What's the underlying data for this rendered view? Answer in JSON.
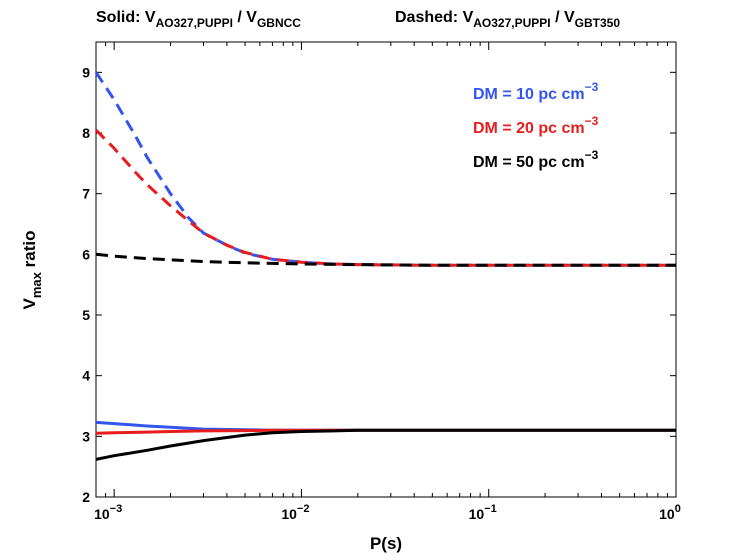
{
  "chart_data": {
    "type": "line",
    "title_left": {
      "prefix": "Solid: V",
      "sub1": "AO327,PUPPI",
      "mid": " / V",
      "sub2": "GBNCC"
    },
    "title_right": {
      "prefix": "Dashed: V",
      "sub1": "AO327,PUPPI",
      "mid": " / V",
      "sub2": "GBT350"
    },
    "xlabel": "P(s)",
    "ylabel": {
      "main": "V",
      "sub": "max",
      "tail": " ratio"
    },
    "xscale": "log",
    "xlim": [
      0.0008,
      1
    ],
    "ylim": [
      2,
      9.5
    ],
    "yticks": [
      "2",
      "3",
      "4",
      "5",
      "6",
      "7",
      "8",
      "9"
    ],
    "xticks": [
      {
        "value": 0.001,
        "base": "10",
        "exp": "−3"
      },
      {
        "value": 0.01,
        "base": "10",
        "exp": "−2"
      },
      {
        "value": 0.1,
        "base": "10",
        "exp": "−1"
      },
      {
        "value": 1,
        "base": "10",
        "exp": "0"
      }
    ],
    "legend": [
      {
        "label": "DM = 10 pc cm",
        "exp": "−3",
        "color": "#3355ee"
      },
      {
        "label": "DM = 20 pc cm",
        "exp": "−3",
        "color": "#e81c1c"
      },
      {
        "label": "DM = 50 pc cm",
        "exp": "−3",
        "color": "#000000"
      }
    ],
    "legend_position": "top-right",
    "series": [
      {
        "name": "DM = 10 pc cm^-3 solid",
        "style": "solid",
        "color": "#3355ee",
        "x": [
          0.0008,
          0.001,
          0.0015,
          0.002,
          0.003,
          0.005,
          0.007,
          0.01,
          0.02,
          0.05,
          0.1,
          0.3,
          1
        ],
        "y": [
          3.23,
          3.21,
          3.17,
          3.15,
          3.12,
          3.11,
          3.1,
          3.1,
          3.1,
          3.1,
          3.1,
          3.1,
          3.1
        ]
      },
      {
        "name": "DM = 20 pc cm^-3 solid",
        "style": "solid",
        "color": "#e81c1c",
        "x": [
          0.0008,
          0.001,
          0.0015,
          0.002,
          0.003,
          0.005,
          0.007,
          0.01,
          0.02,
          0.05,
          0.1,
          0.3,
          1
        ],
        "y": [
          3.05,
          3.06,
          3.07,
          3.08,
          3.09,
          3.095,
          3.1,
          3.1,
          3.1,
          3.1,
          3.1,
          3.1,
          3.1
        ]
      },
      {
        "name": "DM = 50 pc cm^-3 solid",
        "style": "solid",
        "color": "#000000",
        "x": [
          0.0008,
          0.001,
          0.0015,
          0.002,
          0.003,
          0.004,
          0.005,
          0.007,
          0.01,
          0.015,
          0.02,
          0.05,
          0.1,
          0.3,
          1
        ],
        "y": [
          2.62,
          2.68,
          2.77,
          2.84,
          2.93,
          2.98,
          3.02,
          3.06,
          3.08,
          3.09,
          3.1,
          3.1,
          3.1,
          3.1,
          3.1
        ]
      },
      {
        "name": "DM = 10 pc cm^-3 dashed",
        "style": "dashed",
        "color": "#3355ee",
        "x": [
          0.0008,
          0.001,
          0.0013,
          0.0015,
          0.002,
          0.0025,
          0.003,
          0.004,
          0.005,
          0.007,
          0.01,
          0.015,
          0.02,
          0.05,
          0.1,
          0.3,
          1
        ],
        "y": [
          9.0,
          8.55,
          7.95,
          7.6,
          7.0,
          6.6,
          6.35,
          6.15,
          6.02,
          5.92,
          5.87,
          5.84,
          5.83,
          5.82,
          5.82,
          5.82,
          5.82
        ]
      },
      {
        "name": "DM = 20 pc cm^-3 dashed",
        "style": "dashed",
        "color": "#e81c1c",
        "x": [
          0.0008,
          0.001,
          0.0013,
          0.0015,
          0.002,
          0.0025,
          0.003,
          0.004,
          0.005,
          0.007,
          0.01,
          0.015,
          0.02,
          0.05,
          0.1,
          0.3,
          1
        ],
        "y": [
          8.05,
          7.75,
          7.35,
          7.15,
          6.8,
          6.55,
          6.35,
          6.15,
          6.03,
          5.92,
          5.87,
          5.84,
          5.83,
          5.82,
          5.82,
          5.82,
          5.82
        ]
      },
      {
        "name": "DM = 50 pc cm^-3 dashed",
        "style": "dashed",
        "color": "#000000",
        "x": [
          0.0008,
          0.001,
          0.0015,
          0.002,
          0.003,
          0.005,
          0.007,
          0.01,
          0.02,
          0.05,
          0.1,
          0.3,
          1
        ],
        "y": [
          6.0,
          5.97,
          5.93,
          5.91,
          5.88,
          5.86,
          5.85,
          5.84,
          5.83,
          5.82,
          5.82,
          5.82,
          5.82
        ]
      }
    ]
  }
}
